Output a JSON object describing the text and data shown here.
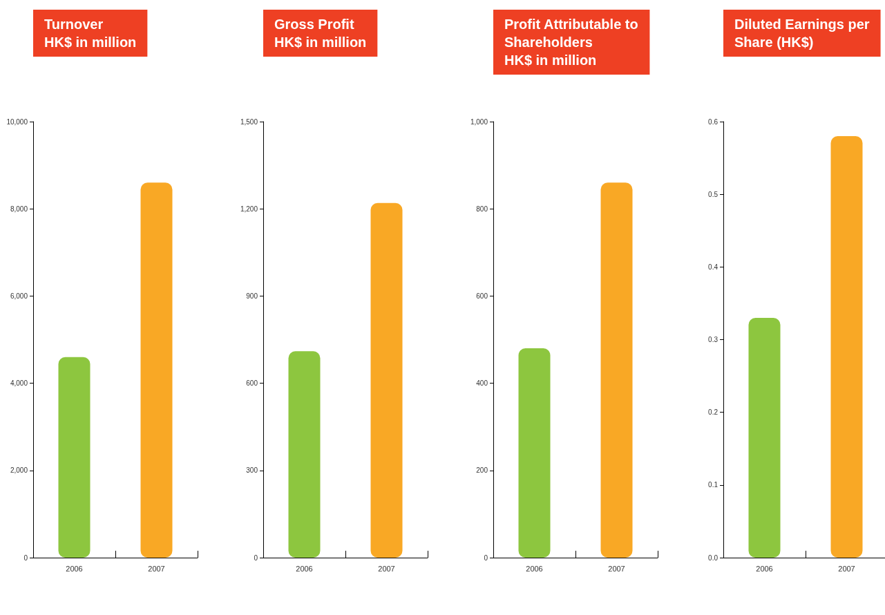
{
  "chart_data": [
    {
      "type": "bar",
      "title": "Turnover\nHK$ in million",
      "categories": [
        "2006",
        "2007"
      ],
      "values": [
        4600,
        8600
      ],
      "colors": [
        "#8dc63f",
        "#f9a825"
      ],
      "ylim": [
        0,
        10000
      ],
      "yticks": [
        0,
        {
          "value": 2000,
          "label": "2,000"
        },
        {
          "value": 4000,
          "label": "4,000"
        },
        {
          "value": 6000,
          "label": "6,000"
        },
        {
          "value": 8000,
          "label": "8,000"
        },
        {
          "value": 10000,
          "label": "10,000"
        }
      ]
    },
    {
      "type": "bar",
      "title": "Gross Profit\nHK$ in million",
      "categories": [
        "2006",
        "2007"
      ],
      "values": [
        710,
        1220
      ],
      "colors": [
        "#8dc63f",
        "#f9a825"
      ],
      "ylim": [
        0,
        1500
      ],
      "yticks": [
        0,
        300,
        600,
        900,
        {
          "value": 1200,
          "label": "1,200"
        },
        {
          "value": 1500,
          "label": "1,500"
        }
      ]
    },
    {
      "type": "bar",
      "title": "Profit Attributable to\nShareholders\nHK$ in million",
      "categories": [
        "2006",
        "2007"
      ],
      "values": [
        480,
        860
      ],
      "colors": [
        "#8dc63f",
        "#f9a825"
      ],
      "ylim": [
        0,
        1000
      ],
      "yticks": [
        0,
        200,
        400,
        600,
        800,
        {
          "value": 1000,
          "label": "1,000"
        }
      ]
    },
    {
      "type": "bar",
      "title": "Diluted Earnings per\nShare (HK$)",
      "categories": [
        "2006",
        "2007"
      ],
      "values": [
        0.33,
        0.58
      ],
      "colors": [
        "#8dc63f",
        "#f9a825"
      ],
      "ylim": [
        0,
        0.6
      ],
      "yticks": [
        {
          "value": 0,
          "label": "0.0"
        },
        0.1,
        0.2,
        0.3,
        0.4,
        0.5,
        0.6
      ]
    }
  ]
}
